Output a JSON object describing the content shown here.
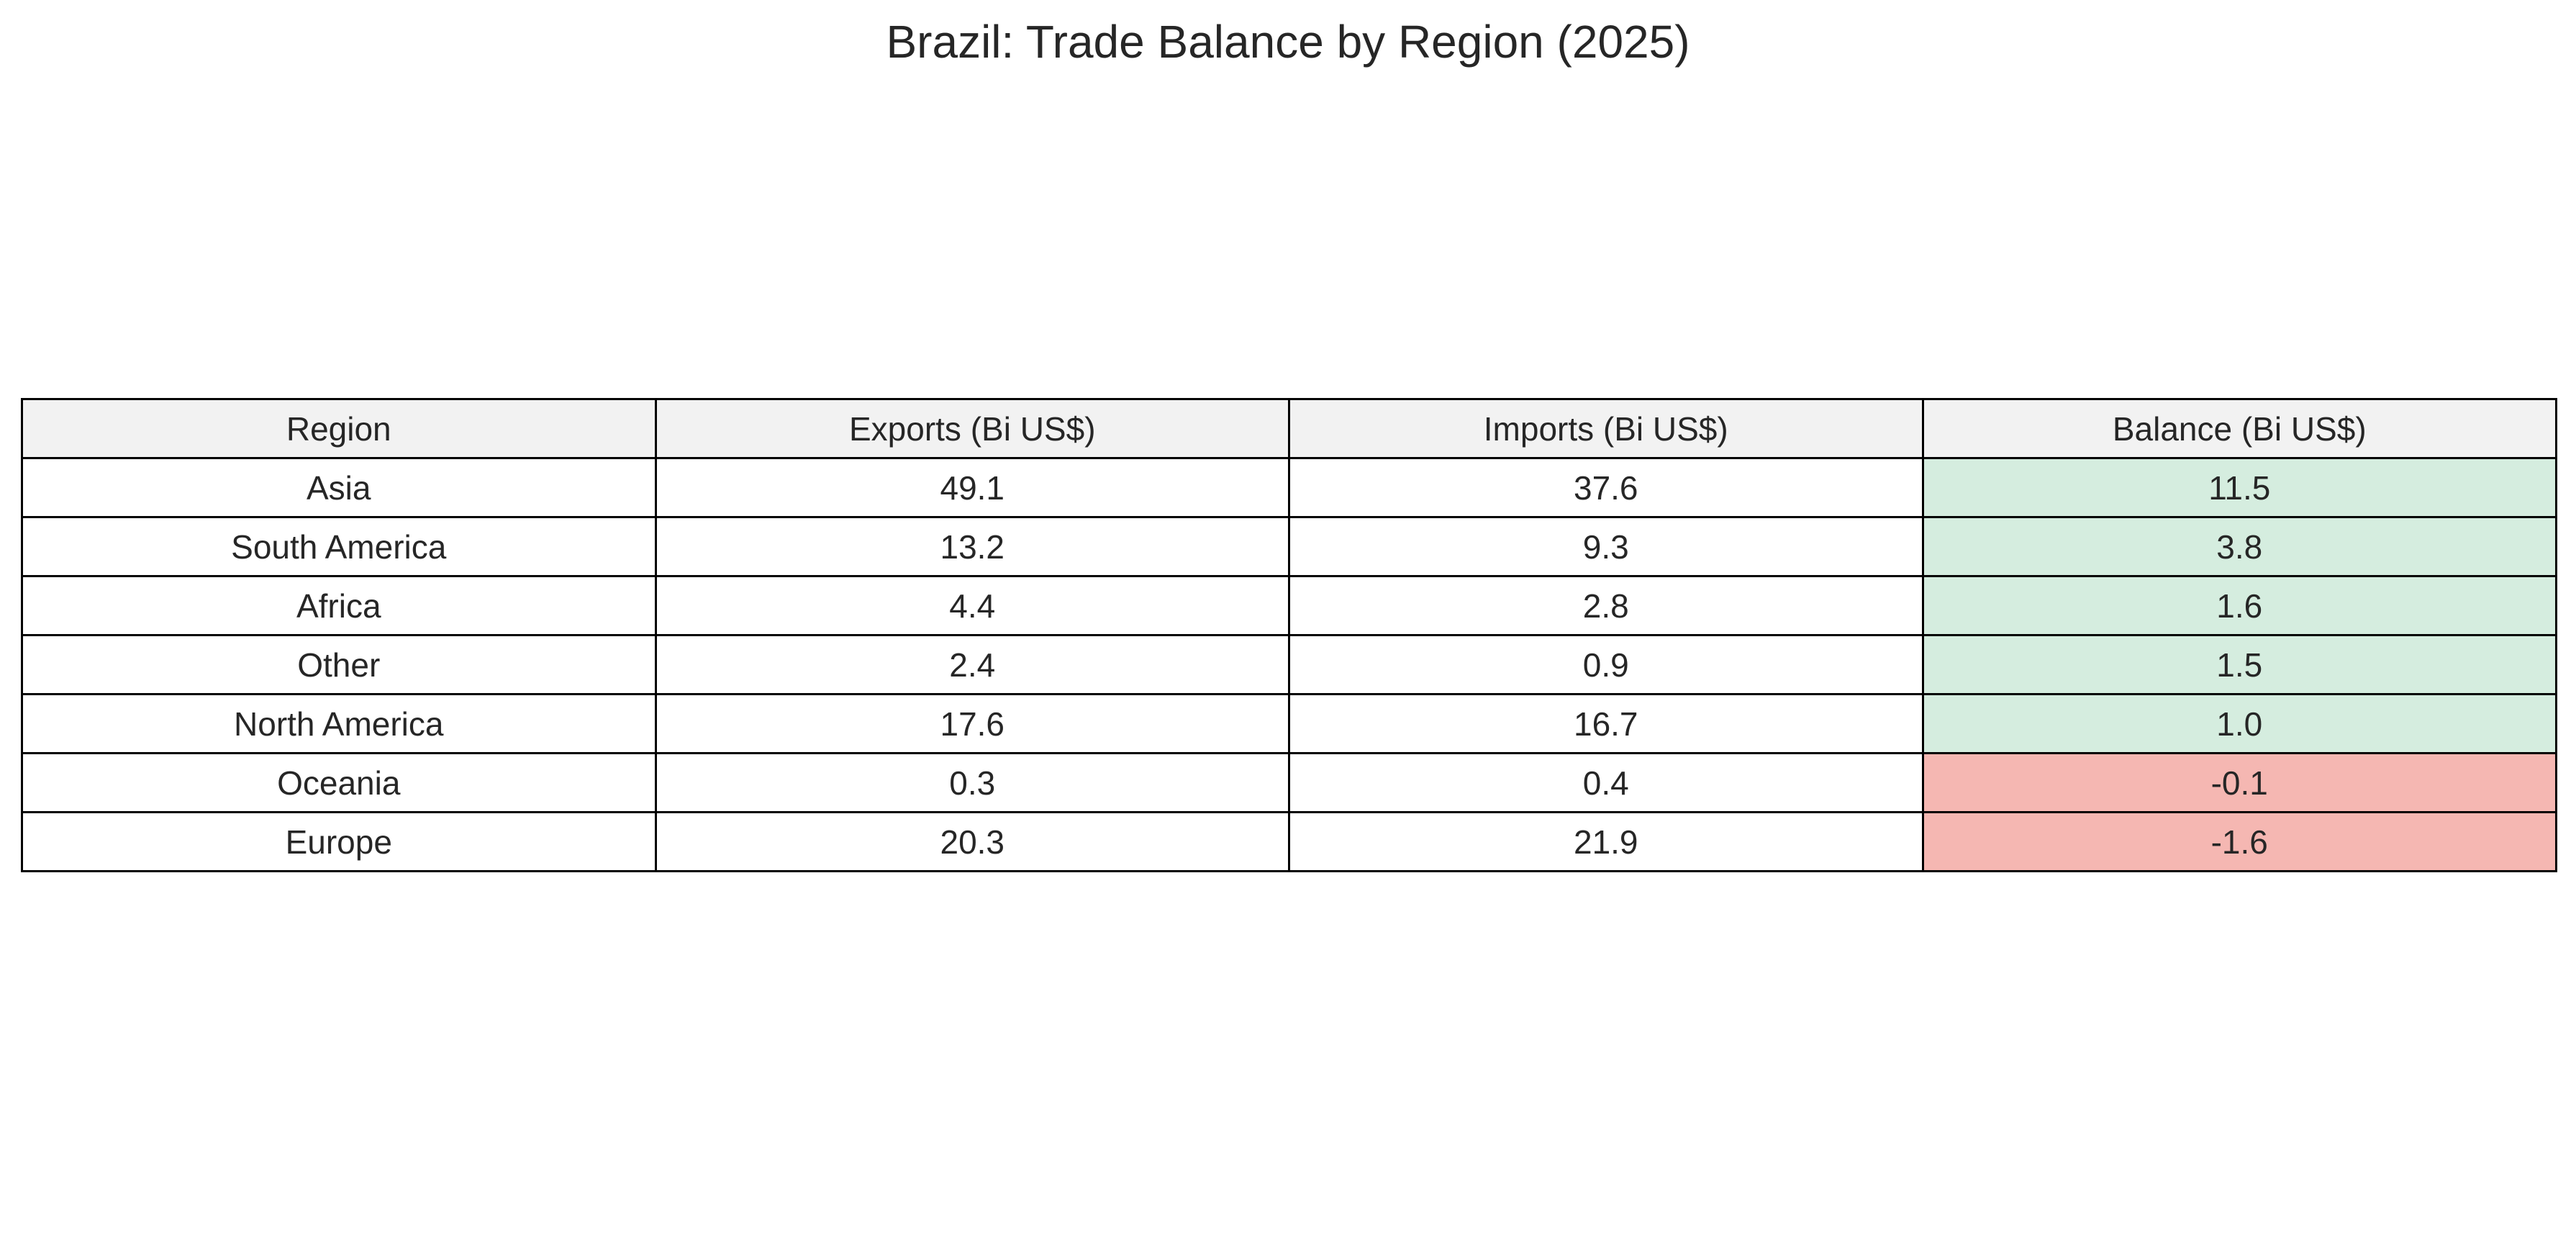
{
  "chart_data": {
    "type": "table",
    "title": "Brazil: Trade Balance by Region (2025)",
    "columns": [
      "Region",
      "Exports (Bi US$)",
      "Imports (Bi US$)",
      "Balance (Bi US$)"
    ],
    "rows": [
      [
        "Asia",
        "49.1",
        "37.6",
        "11.5"
      ],
      [
        "South America",
        "13.2",
        "9.3",
        "3.8"
      ],
      [
        "Africa",
        "4.4",
        "2.8",
        "1.6"
      ],
      [
        "Other",
        "2.4",
        "0.9",
        "1.5"
      ],
      [
        "North America",
        "17.6",
        "16.7",
        "1.0"
      ],
      [
        "Oceania",
        "0.3",
        "0.4",
        "-0.1"
      ],
      [
        "Europe",
        "20.3",
        "21.9",
        "-1.6"
      ]
    ],
    "colors": {
      "header_background": "#f2f2f2",
      "positive_balance": "#d5eddf",
      "negative_balance": "#f5b7b2",
      "grid": "#000000",
      "text": "#262626"
    }
  }
}
